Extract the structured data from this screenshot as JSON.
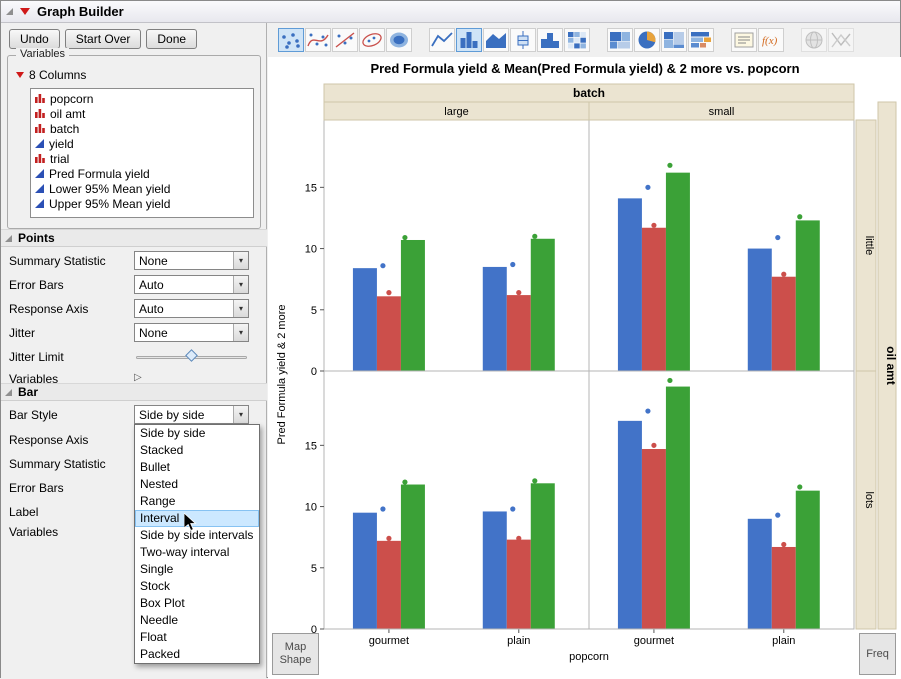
{
  "window": {
    "title": "Graph Builder"
  },
  "buttons": [
    {
      "label": "Undo"
    },
    {
      "label": "Start Over"
    },
    {
      "label": "Done"
    }
  ],
  "variables_panel": {
    "group_title": "Variables",
    "columns_header": "8 Columns",
    "columns": [
      {
        "name": "popcorn",
        "type": "nominal"
      },
      {
        "name": "oil amt",
        "type": "nominal"
      },
      {
        "name": "batch",
        "type": "nominal"
      },
      {
        "name": "yield",
        "type": "continuous"
      },
      {
        "name": "trial",
        "type": "nominal"
      },
      {
        "name": "Pred Formula yield",
        "type": "continuous"
      },
      {
        "name": "Lower 95% Mean yield",
        "type": "continuous"
      },
      {
        "name": "Upper 95% Mean yield",
        "type": "continuous"
      }
    ]
  },
  "points_section": {
    "title": "Points",
    "rows": [
      {
        "label": "Summary Statistic",
        "control": "dropdown",
        "value": "None"
      },
      {
        "label": "Error Bars",
        "control": "dropdown",
        "value": "Auto"
      },
      {
        "label": "Response Axis",
        "control": "dropdown",
        "value": "Auto"
      },
      {
        "label": "Jitter",
        "control": "dropdown",
        "value": "None"
      },
      {
        "label": "Jitter Limit",
        "control": "slider",
        "value": 50
      },
      {
        "label": "Variables",
        "control": "disclosure"
      }
    ]
  },
  "bar_section": {
    "title": "Bar",
    "rows": [
      {
        "label": "Bar Style",
        "control": "dropdown",
        "value": "Side by side",
        "open": true
      },
      {
        "label": "Response Axis",
        "control": "hidden"
      },
      {
        "label": "Summary Statistic",
        "control": "hidden"
      },
      {
        "label": "Error Bars",
        "control": "hidden"
      },
      {
        "label": "Label",
        "control": "hidden"
      },
      {
        "label": "Variables",
        "control": "hidden"
      }
    ],
    "dropdown_options": [
      "Side by side",
      "Stacked",
      "Bullet",
      "Nested",
      "Range",
      "Interval",
      "Side by side intervals",
      "Two-way interval",
      "Single",
      "Stock",
      "Box Plot",
      "Needle",
      "Float",
      "Packed"
    ],
    "highlighted_option": "Interval"
  },
  "element_palette": [
    {
      "name": "points-icon",
      "group": 1,
      "selected": true
    },
    {
      "name": "smoother-icon",
      "group": 1
    },
    {
      "name": "line-of-fit-icon",
      "group": 1
    },
    {
      "name": "ellipse-icon",
      "group": 1
    },
    {
      "name": "contour-icon",
      "group": 1
    },
    {
      "name": "line-icon",
      "group": 2
    },
    {
      "name": "bar-icon",
      "group": 2,
      "selected": true
    },
    {
      "name": "area-icon",
      "group": 2
    },
    {
      "name": "box-plot-icon",
      "group": 2
    },
    {
      "name": "histogram-icon",
      "group": 2
    },
    {
      "name": "heatmap-icon",
      "group": 2
    },
    {
      "name": "treemap-icon",
      "group": 3
    },
    {
      "name": "pie-icon",
      "group": 3
    },
    {
      "name": "mosaic-icon",
      "group": 3
    },
    {
      "name": "packed-bars-icon",
      "group": 3
    },
    {
      "name": "caption-box-icon",
      "group": 4
    },
    {
      "name": "formula-icon",
      "group": 4
    },
    {
      "name": "map-shape-icon",
      "group": 5,
      "disabled": true
    },
    {
      "name": "parallel-plot-icon",
      "group": 5,
      "disabled": true
    }
  ],
  "drop_zones": {
    "map_shape": "Map Shape",
    "freq": "Freq"
  },
  "chart_data": {
    "type": "bar",
    "title": "Pred Formula yield & Mean(Pred Formula yield) & 2 more vs. popcorn",
    "ylabel": "Pred Formula yield & 2 more",
    "xlabel": "popcorn",
    "col_facet": {
      "label": "batch",
      "levels": [
        "large",
        "small"
      ]
    },
    "row_facet": {
      "label": "oil amt",
      "levels": [
        "little",
        "lots"
      ]
    },
    "categories": [
      "gourmet",
      "plain"
    ],
    "series": [
      "Pred Formula yield",
      "Lower 95% Mean yield",
      "Upper 95% Mean yield"
    ],
    "colors": [
      "#4273c8",
      "#cc4f4b",
      "#3ba137"
    ],
    "yticks": [
      0,
      5,
      10,
      15
    ],
    "ylim": [
      0,
      20.5
    ],
    "grid": false,
    "legend": "none",
    "facets": [
      {
        "row": 0,
        "col": 0,
        "bars": [
          [
            8.4,
            6.1,
            10.7
          ],
          [
            8.5,
            6.2,
            10.8
          ]
        ],
        "points": [
          [
            8.6,
            6.4,
            10.9
          ],
          [
            8.7,
            6.4,
            11.0
          ]
        ]
      },
      {
        "row": 0,
        "col": 1,
        "bars": [
          [
            14.1,
            11.7,
            16.2
          ],
          [
            10.0,
            7.7,
            12.3
          ]
        ],
        "points": [
          [
            15.0,
            11.9,
            16.8
          ],
          [
            10.9,
            7.9,
            12.6
          ]
        ]
      },
      {
        "row": 1,
        "col": 0,
        "bars": [
          [
            9.5,
            7.2,
            11.8
          ],
          [
            9.6,
            7.3,
            11.9
          ]
        ],
        "points": [
          [
            9.8,
            7.4,
            12.0
          ],
          [
            9.8,
            7.4,
            12.1
          ]
        ]
      },
      {
        "row": 1,
        "col": 1,
        "bars": [
          [
            17.0,
            14.7,
            19.8
          ],
          [
            9.0,
            6.7,
            11.3
          ]
        ],
        "points": [
          [
            17.8,
            15.0,
            20.3
          ],
          [
            9.3,
            6.9,
            11.6
          ]
        ]
      }
    ]
  }
}
